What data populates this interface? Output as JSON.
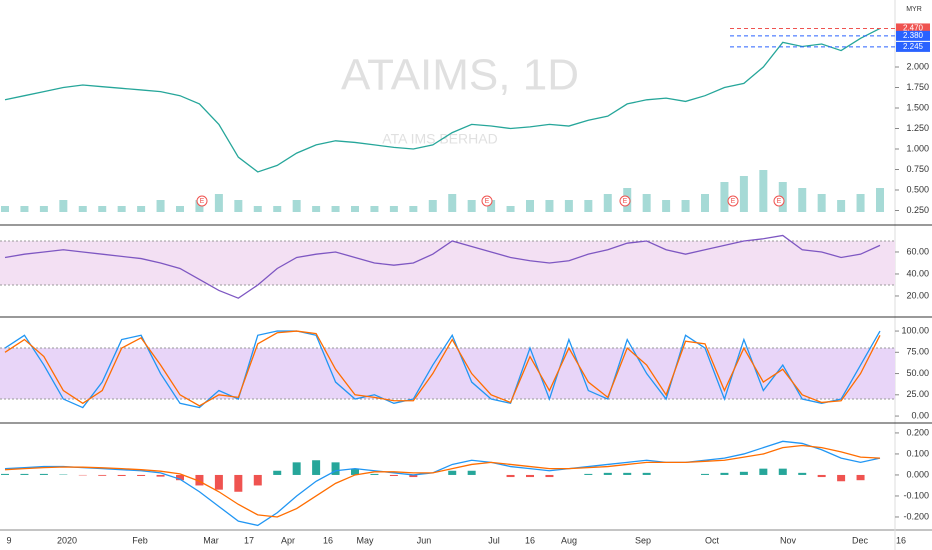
{
  "currency": "MYR",
  "x_axis_labels": [
    "9",
    "2020",
    "Feb",
    "Mar",
    "17",
    "Apr",
    "16",
    "May",
    "Jun",
    "Jul",
    "16",
    "Aug",
    "Sep",
    "Oct",
    "Nov",
    "Dec",
    "16"
  ],
  "annotations": [
    "E",
    "E",
    "E",
    "E",
    "E"
  ],
  "chart_data": [
    {
      "type": "line",
      "title": "ATAIMS, 1D",
      "subtitle": "ATA IMS BERHAD",
      "series": [
        {
          "color": "#26a69a",
          "values": [
            1.6,
            1.65,
            1.7,
            1.75,
            1.78,
            1.76,
            1.74,
            1.72,
            1.7,
            1.65,
            1.55,
            1.3,
            0.9,
            0.72,
            0.8,
            0.95,
            1.05,
            1.1,
            1.08,
            1.05,
            1.02,
            1.0,
            1.05,
            1.2,
            1.3,
            1.28,
            1.25,
            1.27,
            1.3,
            1.28,
            1.35,
            1.4,
            1.55,
            1.6,
            1.62,
            1.58,
            1.65,
            1.75,
            1.8,
            2.0,
            2.3,
            2.25,
            2.28,
            2.2,
            2.35,
            2.47
          ]
        }
      ],
      "volume": {
        "color": "#80cbc4",
        "ylim": [
          0,
          10
        ],
        "values": [
          1,
          1,
          1,
          2,
          1,
          1,
          1,
          1,
          2,
          1,
          2,
          3,
          2,
          1,
          1,
          2,
          1,
          1,
          1,
          1,
          1,
          1,
          2,
          3,
          2,
          2,
          1,
          2,
          2,
          2,
          2,
          3,
          4,
          3,
          2,
          2,
          3,
          5,
          6,
          7,
          5,
          4,
          3,
          2,
          3,
          4
        ]
      },
      "ylim": [
        0.195,
        2.817
      ],
      "yticks": [
        {
          "value": 2,
          "label": "2.000"
        },
        {
          "value": 1.75,
          "label": "1.750"
        },
        {
          "value": 1.5,
          "label": "1.500"
        },
        {
          "value": 1.25,
          "label": "1.250"
        },
        {
          "value": 1,
          "label": "1.000"
        },
        {
          "value": 0.75,
          "label": "0.750"
        },
        {
          "value": 0.5,
          "label": "0.500"
        },
        {
          "value": 0.25,
          "label": "0.250"
        }
      ],
      "price_labels": [
        {
          "value": 2.47,
          "label": "2.470",
          "color": "#ef5350"
        },
        {
          "value": 2.38,
          "label": "2.380",
          "color": "#2962ff"
        },
        {
          "value": 2.245,
          "label": "2.245",
          "color": "#2962ff"
        }
      ]
    },
    {
      "type": "line",
      "series": [
        {
          "color": "#7e57c2",
          "values": [
            55,
            58,
            60,
            62,
            60,
            58,
            56,
            54,
            50,
            45,
            35,
            25,
            18,
            30,
            45,
            55,
            58,
            60,
            55,
            50,
            48,
            50,
            58,
            70,
            65,
            60,
            55,
            52,
            50,
            52,
            58,
            62,
            68,
            70,
            62,
            58,
            62,
            66,
            70,
            72,
            75,
            62,
            60,
            55,
            58,
            66
          ]
        }
      ],
      "ylim": [
        2.7,
        81.8
      ],
      "band": [
        30,
        70
      ],
      "band_color": "#f3e0f3",
      "yticks": [
        {
          "value": 60,
          "label": "60.00"
        },
        {
          "value": 40,
          "label": "40.00"
        },
        {
          "value": 20,
          "label": "20.00"
        }
      ]
    },
    {
      "type": "line",
      "series": [
        {
          "color": "#2196f3",
          "values": [
            80,
            95,
            60,
            20,
            10,
            40,
            90,
            95,
            50,
            15,
            10,
            30,
            20,
            95,
            100,
            100,
            95,
            40,
            20,
            25,
            15,
            20,
            60,
            95,
            40,
            20,
            15,
            80,
            20,
            90,
            30,
            20,
            90,
            50,
            20,
            95,
            80,
            20,
            90,
            30,
            60,
            20,
            15,
            20,
            60,
            100
          ]
        },
        {
          "color": "#ff6d00",
          "values": [
            75,
            90,
            70,
            30,
            15,
            30,
            80,
            92,
            60,
            25,
            12,
            25,
            22,
            85,
            98,
            100,
            97,
            55,
            25,
            22,
            18,
            18,
            50,
            90,
            50,
            25,
            16,
            70,
            30,
            80,
            40,
            22,
            80,
            60,
            25,
            88,
            85,
            30,
            80,
            40,
            55,
            25,
            16,
            18,
            50,
            95
          ]
        }
      ],
      "ylim": [
        -7,
        113
      ],
      "band": [
        20,
        80
      ],
      "band_color": "#e8d5f8",
      "yticks": [
        {
          "value": 100,
          "label": "100.00"
        },
        {
          "value": 75,
          "label": "75.00"
        },
        {
          "value": 50,
          "label": "50.00"
        },
        {
          "value": 25,
          "label": "25.00"
        },
        {
          "value": 0,
          "label": "0.00"
        }
      ]
    },
    {
      "type": "macd",
      "series": [
        {
          "color": "#2196f3",
          "values": [
            0.03,
            0.035,
            0.04,
            0.04,
            0.035,
            0.03,
            0.025,
            0.02,
            0.01,
            -0.02,
            -0.08,
            -0.15,
            -0.22,
            -0.24,
            -0.18,
            -0.1,
            -0.03,
            0.02,
            0.03,
            0.02,
            0.01,
            0,
            0.01,
            0.05,
            0.07,
            0.06,
            0.04,
            0.03,
            0.02,
            0.03,
            0.04,
            0.05,
            0.06,
            0.07,
            0.06,
            0.06,
            0.07,
            0.08,
            0.1,
            0.13,
            0.16,
            0.15,
            0.12,
            0.08,
            0.06,
            0.08
          ]
        },
        {
          "color": "#ff6d00",
          "values": [
            0.025,
            0.03,
            0.035,
            0.038,
            0.037,
            0.034,
            0.03,
            0.025,
            0.018,
            0.005,
            -0.03,
            -0.08,
            -0.14,
            -0.19,
            -0.2,
            -0.16,
            -0.1,
            -0.04,
            0,
            0.015,
            0.015,
            0.01,
            0.01,
            0.03,
            0.05,
            0.06,
            0.05,
            0.04,
            0.03,
            0.03,
            0.035,
            0.04,
            0.05,
            0.06,
            0.06,
            0.06,
            0.065,
            0.07,
            0.085,
            0.1,
            0.13,
            0.14,
            0.13,
            0.11,
            0.085,
            0.08
          ]
        }
      ],
      "histogram": {
        "up_color": "#26a69a",
        "down_color": "#ef5350",
        "values": [
          0.005,
          0.005,
          0.005,
          0.002,
          -0.002,
          -0.004,
          -0.005,
          -0.005,
          -0.008,
          -0.025,
          -0.05,
          -0.07,
          -0.08,
          -0.05,
          0.02,
          0.06,
          0.07,
          0.06,
          0.03,
          0.005,
          -0.005,
          -0.01,
          0,
          0.02,
          0.02,
          0,
          -0.01,
          -0.01,
          -0.01,
          0,
          0.005,
          0.01,
          0.01,
          0.01,
          0,
          0,
          0.005,
          0.01,
          0.015,
          0.03,
          0.03,
          0.01,
          -0.01,
          -0.03,
          -0.025,
          0
        ]
      },
      "ylim": [
        -0.262,
        0.233
      ],
      "yticks": [
        {
          "value": 0.2,
          "label": "0.200"
        },
        {
          "value": 0.1,
          "label": "0.100"
        },
        {
          "value": 0,
          "label": "0.000"
        },
        {
          "value": -0.1,
          "label": "-0.100"
        },
        {
          "value": -0.2,
          "label": "-0.200"
        }
      ]
    }
  ]
}
